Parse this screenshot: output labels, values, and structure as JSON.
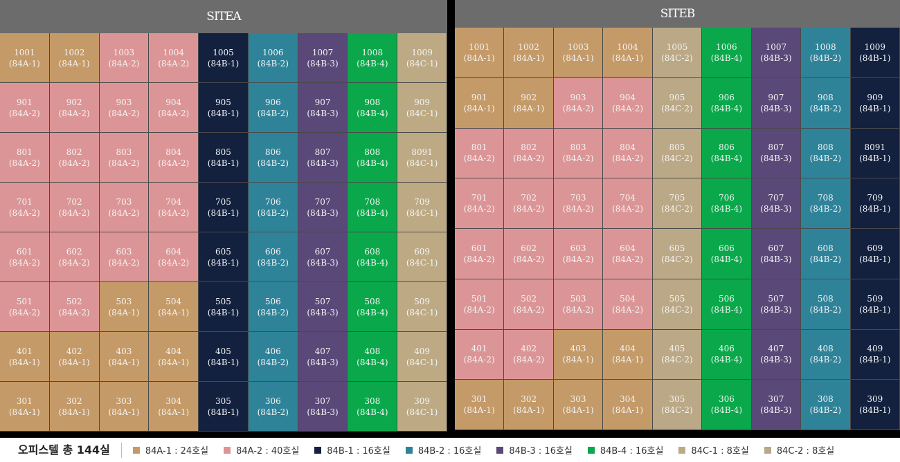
{
  "colors": {
    "84A-1": "#c49a68",
    "84A-2": "#dc9596",
    "84B-1": "#13213f",
    "84B-2": "#2f8399",
    "84B-3": "#5a4878",
    "84B-4": "#0aa84b",
    "84C-1": "#bdaa85",
    "84C-2": "#bba886"
  },
  "siteA": {
    "title": "SITEA",
    "rows": [
      [
        [
          "1001",
          "(84A-1)"
        ],
        [
          "1002",
          "(84A-1)"
        ],
        [
          "1003",
          "(84A-2)"
        ],
        [
          "1004",
          "(84A-2)"
        ],
        [
          "1005",
          "(84B-1)"
        ],
        [
          "1006",
          "(84B-2)"
        ],
        [
          "1007",
          "(84B-3)"
        ],
        [
          "1008",
          "(84B-4)"
        ],
        [
          "1009",
          "(84C-1)"
        ]
      ],
      [
        [
          "901",
          "(84A-2)"
        ],
        [
          "902",
          "(84A-2)"
        ],
        [
          "903",
          "(84A-2)"
        ],
        [
          "904",
          "(84A-2)"
        ],
        [
          "905",
          "(84B-1)"
        ],
        [
          "906",
          "(84B-2)"
        ],
        [
          "907",
          "(84B-3)"
        ],
        [
          "908",
          "(84B-4)"
        ],
        [
          "909",
          "(84C-1)"
        ]
      ],
      [
        [
          "801",
          "(84A-2)"
        ],
        [
          "802",
          "(84A-2)"
        ],
        [
          "803",
          "(84A-2)"
        ],
        [
          "804",
          "(84A-2)"
        ],
        [
          "805",
          "(84B-1)"
        ],
        [
          "806",
          "(84B-2)"
        ],
        [
          "807",
          "(84B-3)"
        ],
        [
          "808",
          "(84B-4)"
        ],
        [
          "8091",
          "(84C-1)"
        ]
      ],
      [
        [
          "701",
          "(84A-2)"
        ],
        [
          "702",
          "(84A-2)"
        ],
        [
          "703",
          "(84A-2)"
        ],
        [
          "704",
          "(84A-2)"
        ],
        [
          "705",
          "(84B-1)"
        ],
        [
          "706",
          "(84B-2)"
        ],
        [
          "707",
          "(84B-3)"
        ],
        [
          "708",
          "(84B-4)"
        ],
        [
          "709",
          "(84C-1)"
        ]
      ],
      [
        [
          "601",
          "(84A-2)"
        ],
        [
          "602",
          "(84A-2)"
        ],
        [
          "603",
          "(84A-2)"
        ],
        [
          "604",
          "(84A-2)"
        ],
        [
          "605",
          "(84B-1)"
        ],
        [
          "606",
          "(84B-2)"
        ],
        [
          "607",
          "(84B-3)"
        ],
        [
          "608",
          "(84B-4)"
        ],
        [
          "609",
          "(84C-1)"
        ]
      ],
      [
        [
          "501",
          "(84A-2)"
        ],
        [
          "502",
          "(84A-2)"
        ],
        [
          "503",
          "(84A-1)"
        ],
        [
          "504",
          "(84A-1)"
        ],
        [
          "505",
          "(84B-1)"
        ],
        [
          "506",
          "(84B-2)"
        ],
        [
          "507",
          "(84B-3)"
        ],
        [
          "508",
          "(84B-4)"
        ],
        [
          "509",
          "(84C-1)"
        ]
      ],
      [
        [
          "401",
          "(84A-1)"
        ],
        [
          "402",
          "(84A-1)"
        ],
        [
          "403",
          "(84A-1)"
        ],
        [
          "404",
          "(84A-1)"
        ],
        [
          "405",
          "(84B-1)"
        ],
        [
          "406",
          "(84B-2)"
        ],
        [
          "407",
          "(84B-3)"
        ],
        [
          "408",
          "(84B-4)"
        ],
        [
          "409",
          "(84C-1)"
        ]
      ],
      [
        [
          "301",
          "(84A-1)"
        ],
        [
          "302",
          "(84A-1)"
        ],
        [
          "303",
          "(84A-1)"
        ],
        [
          "304",
          "(84A-1)"
        ],
        [
          "305",
          "(84B-1)"
        ],
        [
          "306",
          "(84B-2)"
        ],
        [
          "307",
          "(84B-3)"
        ],
        [
          "308",
          "(84B-4)"
        ],
        [
          "309",
          "(84C-1)"
        ]
      ]
    ]
  },
  "siteB": {
    "title": "SITEB",
    "rows": [
      [
        [
          "1001",
          "(84A-1)"
        ],
        [
          "1002",
          "(84A-1)"
        ],
        [
          "1003",
          "(84A-1)"
        ],
        [
          "1004",
          "(84A-1)"
        ],
        [
          "1005",
          "(84C-2)"
        ],
        [
          "1006",
          "(84B-4)"
        ],
        [
          "1007",
          "(84B-3)"
        ],
        [
          "1008",
          "(84B-2)"
        ],
        [
          "1009",
          "(84B-1)"
        ]
      ],
      [
        [
          "901",
          "(84A-1)"
        ],
        [
          "902",
          "(84A-1)"
        ],
        [
          "903",
          "(84A-2)"
        ],
        [
          "904",
          "(84A-2)"
        ],
        [
          "905",
          "(84C-2)"
        ],
        [
          "906",
          "(84B-4)"
        ],
        [
          "907",
          "(84B-3)"
        ],
        [
          "908",
          "(84B-2)"
        ],
        [
          "909",
          "(84B-1)"
        ]
      ],
      [
        [
          "801",
          "(84A-2)"
        ],
        [
          "802",
          "(84A-2)"
        ],
        [
          "803",
          "(84A-2)"
        ],
        [
          "804",
          "(84A-2)"
        ],
        [
          "805",
          "(84C-2)"
        ],
        [
          "806",
          "(84B-4)"
        ],
        [
          "807",
          "(84B-3)"
        ],
        [
          "808",
          "(84B-2)"
        ],
        [
          "8091",
          "(84B-1)"
        ]
      ],
      [
        [
          "701",
          "(84A-2)"
        ],
        [
          "702",
          "(84A-2)"
        ],
        [
          "703",
          "(84A-2)"
        ],
        [
          "704",
          "(84A-2)"
        ],
        [
          "705",
          "(84C-2)"
        ],
        [
          "706",
          "(84B-4)"
        ],
        [
          "707",
          "(84B-3)"
        ],
        [
          "708",
          "(84B-2)"
        ],
        [
          "709",
          "(84B-1)"
        ]
      ],
      [
        [
          "601",
          "(84A-2)"
        ],
        [
          "602",
          "(84A-2)"
        ],
        [
          "603",
          "(84A-2)"
        ],
        [
          "604",
          "(84A-2)"
        ],
        [
          "605",
          "(84C-2)"
        ],
        [
          "606",
          "(84B-4)"
        ],
        [
          "607",
          "(84B-3)"
        ],
        [
          "608",
          "(84B-2)"
        ],
        [
          "609",
          "(84B-1)"
        ]
      ],
      [
        [
          "501",
          "(84A-2)"
        ],
        [
          "502",
          "(84A-2)"
        ],
        [
          "503",
          "(84A-2)"
        ],
        [
          "504",
          "(84A-2)"
        ],
        [
          "505",
          "(84C-2)"
        ],
        [
          "506",
          "(84B-4)"
        ],
        [
          "507",
          "(84B-3)"
        ],
        [
          "508",
          "(84B-2)"
        ],
        [
          "509",
          "(84B-1)"
        ]
      ],
      [
        [
          "401",
          "(84A-2)"
        ],
        [
          "402",
          "(84A-2)"
        ],
        [
          "403",
          "(84A-1)"
        ],
        [
          "404",
          "(84A-1)"
        ],
        [
          "405",
          "(84C-2)"
        ],
        [
          "406",
          "(84B-4)"
        ],
        [
          "407",
          "(84B-3)"
        ],
        [
          "408",
          "(84B-2)"
        ],
        [
          "409",
          "(84B-1)"
        ]
      ],
      [
        [
          "301",
          "(84A-1)"
        ],
        [
          "302",
          "(84A-1)"
        ],
        [
          "303",
          "(84A-1)"
        ],
        [
          "304",
          "(84A-1)"
        ],
        [
          "305",
          "(84C-2)"
        ],
        [
          "306",
          "(84B-4)"
        ],
        [
          "307",
          "(84B-3)"
        ],
        [
          "308",
          "(84B-2)"
        ],
        [
          "309",
          "(84B-1)"
        ]
      ]
    ]
  },
  "legend": {
    "title": "오피스텔 총 144실",
    "items": [
      {
        "type": "84A-1",
        "label": "84A-1 : 24호실"
      },
      {
        "type": "84A-2",
        "label": "84A-2 : 40호실"
      },
      {
        "type": "84B-1",
        "label": "84B-1 : 16호실"
      },
      {
        "type": "84B-2",
        "label": "84B-2 : 16호실"
      },
      {
        "type": "84B-3",
        "label": "84B-3 : 16호실"
      },
      {
        "type": "84B-4",
        "label": "84B-4 : 16호실"
      },
      {
        "type": "84C-1",
        "label": "84C-1 : 8호실"
      },
      {
        "type": "84C-2",
        "label": "84C-2 : 8호실"
      }
    ]
  }
}
